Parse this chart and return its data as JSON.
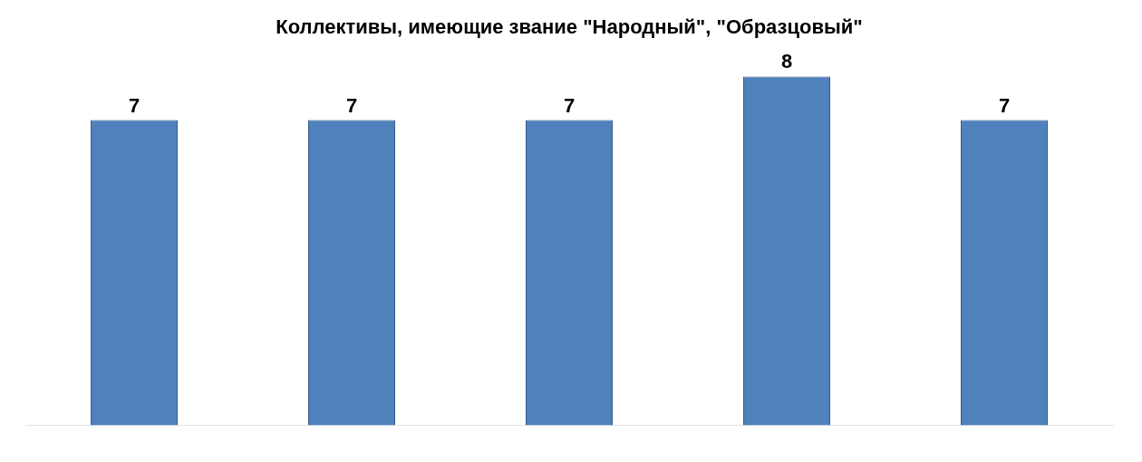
{
  "chart_data": {
    "type": "bar",
    "title": "Коллективы, имеющие звание \"Народный\", \"Образцовый\"",
    "categories": [
      null,
      null,
      null,
      null,
      null
    ],
    "values": [
      7,
      7,
      7,
      8,
      7
    ],
    "color": "#4f81bd",
    "data_labels": true,
    "grid": false,
    "legend": false
  }
}
